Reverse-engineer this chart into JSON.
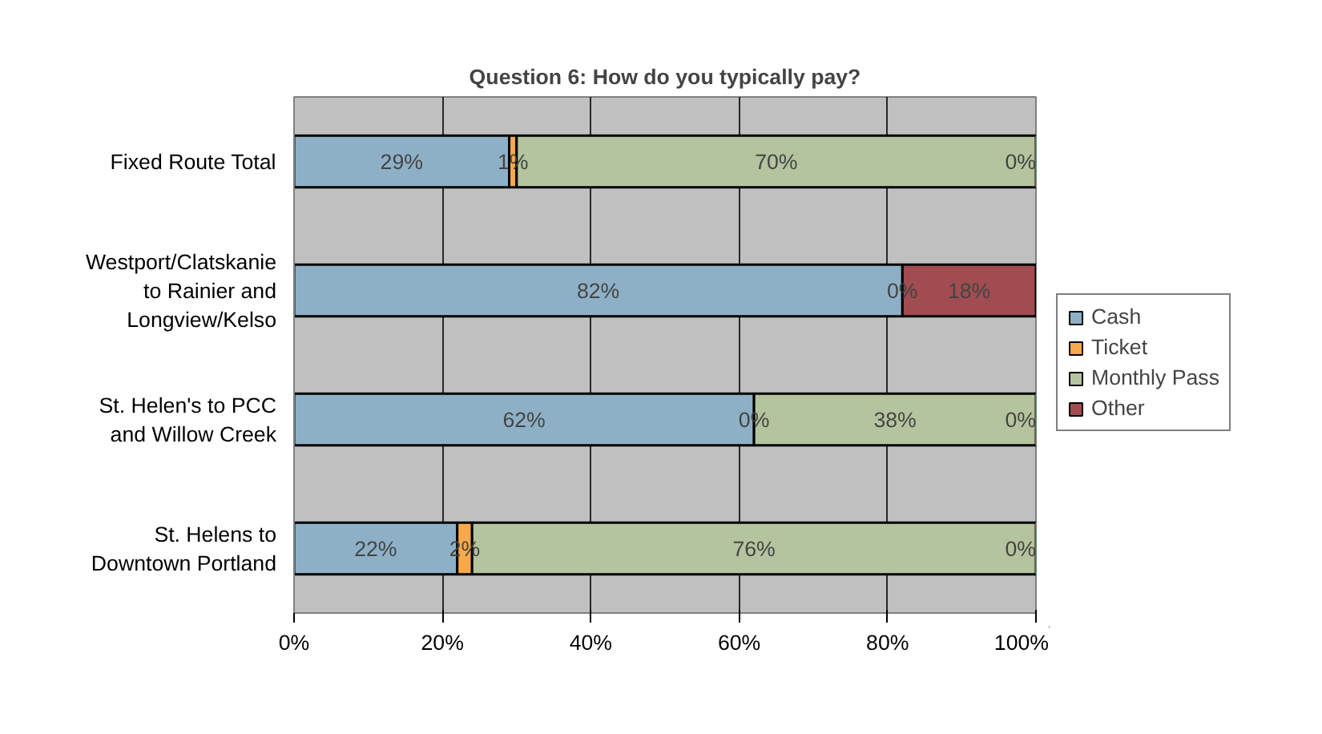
{
  "chart_data": {
    "type": "bar",
    "orientation": "horizontal",
    "stacked": true,
    "title": "Question 6: How do you typically pay?",
    "categories": [
      "Fixed Route Total",
      "Westport/Clatskanie\nto Rainier and\nLongview/Kelso",
      "St. Helen's to PCC\nand Willow Creek",
      "St. Helens to\nDowntown Portland"
    ],
    "series": [
      {
        "name": "Cash",
        "color": "#8eb0c6",
        "values": [
          29,
          82,
          62,
          22
        ],
        "value_labels": [
          "29%",
          "82%",
          "62%",
          "22%"
        ]
      },
      {
        "name": "Ticket",
        "color": "#f8a94a",
        "values": [
          1,
          0,
          0,
          2
        ],
        "value_labels": [
          "1%",
          "0%",
          "0%",
          "2%"
        ]
      },
      {
        "name": "Monthly Pass",
        "color": "#b4c49e",
        "values": [
          70,
          0,
          38,
          76
        ],
        "value_labels": [
          "70%",
          null,
          "38%",
          "76%"
        ]
      },
      {
        "name": "Other",
        "color": "#a04c50",
        "values": [
          0,
          18,
          0,
          0
        ],
        "value_labels": [
          "0%",
          "18%",
          "0%",
          "0%"
        ]
      }
    ],
    "xlim": [
      0,
      100
    ],
    "xticks": [
      {
        "value": 0,
        "label": "0%"
      },
      {
        "value": 20,
        "label": "20%"
      },
      {
        "value": 40,
        "label": "40%"
      },
      {
        "value": 60,
        "label": "60%"
      },
      {
        "value": 80,
        "label": "80%"
      },
      {
        "value": 100,
        "label": "100%"
      }
    ],
    "grid": "x",
    "legend": "right"
  }
}
